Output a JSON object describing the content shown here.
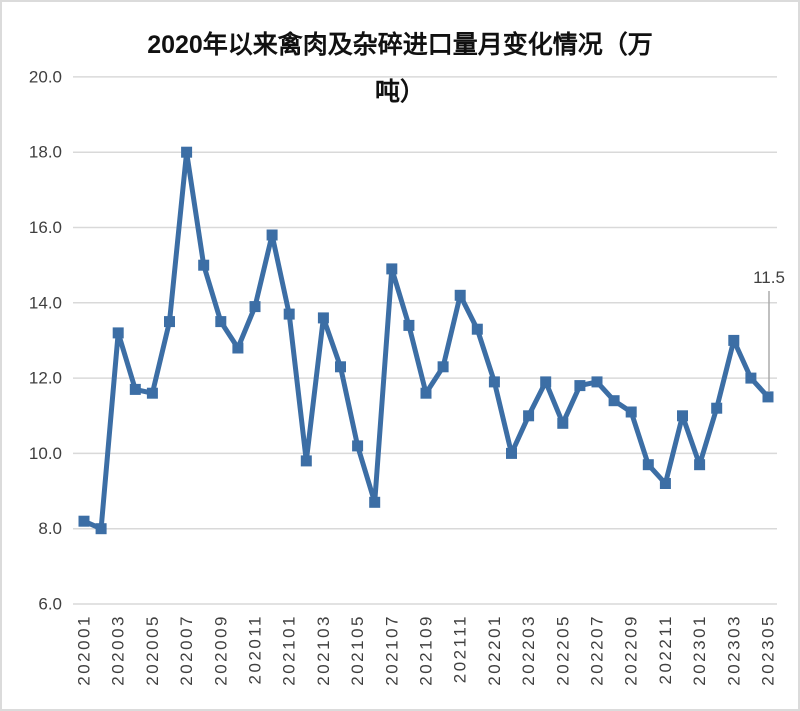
{
  "title_lines": [
    "2020年以来禽肉及杂碎进口量月变化情况（万",
    "吨）"
  ],
  "annotation": {
    "label": "11.5"
  },
  "colors": {
    "line": "#3C6EA5",
    "gridline": "#D9D9D9",
    "axis_text": "#3F3F3F",
    "title_text": "#111111",
    "leader": "#ABABAB",
    "border": "#DBDBDB",
    "background": "#FFFFFF"
  },
  "chart_data": {
    "type": "line",
    "title": "2020年以来禽肉及杂碎进口量月变化情况（万吨）",
    "xlabel": "",
    "ylabel": "",
    "ylim": [
      6,
      20
    ],
    "ytick_step": 2,
    "ytick_labels": [
      "6.0",
      "8.0",
      "10.0",
      "12.0",
      "14.0",
      "16.0",
      "18.0",
      "20.0"
    ],
    "xtick_every": 2,
    "grid": true,
    "legend": "none",
    "marker": "square",
    "categories": [
      "202001",
      "202002",
      "202003",
      "202004",
      "202005",
      "202006",
      "202007",
      "202008",
      "202009",
      "202010",
      "202011",
      "202012",
      "202101",
      "202102",
      "202103",
      "202104",
      "202105",
      "202106",
      "202107",
      "202108",
      "202109",
      "202110",
      "202111",
      "202112",
      "202201",
      "202202",
      "202203",
      "202204",
      "202205",
      "202206",
      "202207",
      "202208",
      "202209",
      "202210",
      "202211",
      "202212",
      "202301",
      "202302",
      "202303",
      "202304",
      "202305"
    ],
    "values": [
      8.2,
      8.0,
      13.2,
      11.7,
      11.6,
      13.5,
      18.0,
      15.0,
      13.5,
      12.8,
      13.9,
      15.8,
      13.7,
      9.8,
      13.6,
      12.3,
      10.2,
      8.7,
      14.9,
      13.4,
      11.6,
      12.3,
      14.2,
      13.3,
      11.9,
      10.0,
      11.0,
      11.9,
      10.8,
      11.8,
      11.9,
      11.4,
      11.1,
      9.7,
      9.2,
      11.0,
      9.7,
      11.2,
      13.0,
      12.0,
      11.5
    ],
    "last_point_label": "11.5"
  }
}
